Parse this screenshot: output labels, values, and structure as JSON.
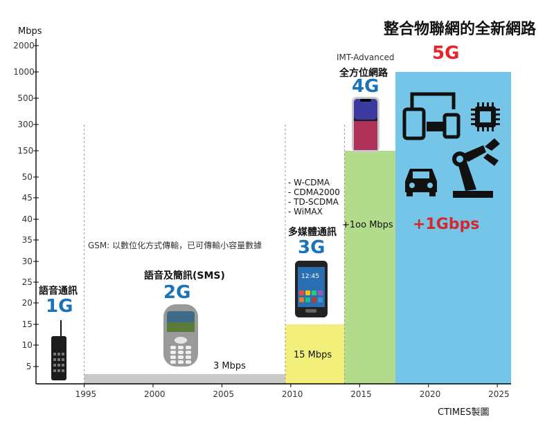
{
  "title": "整合物聯網的全新網路",
  "credit": "CTIMES製圖",
  "chart_data": {
    "type": "bar",
    "title": "整合物聯網的全新網路",
    "ylabel": "Mbps",
    "xlabel": "",
    "x_ticks": [
      1995,
      2000,
      2005,
      2010,
      2015,
      2020,
      2025
    ],
    "y_ticks": [
      "5",
      "10",
      "15",
      "20",
      "25",
      "30",
      "35",
      "40",
      "45",
      "50",
      "150",
      "300",
      "500",
      "1000",
      "2000"
    ],
    "xlim": [
      1991.5,
      2026
    ],
    "bars": [
      {
        "name": "2G",
        "x_start": 1995,
        "x_end": 2009.6,
        "tick_value": "3 Mbps",
        "label": "3 Mbps",
        "color": "#c9c9c9"
      },
      {
        "name": "3G",
        "x_start": 2009.6,
        "x_end": 2013.9,
        "tick_value": "15",
        "label": "15 Mbps",
        "color": "#f2ef7a"
      },
      {
        "name": "4G",
        "x_start": 2013.9,
        "x_end": 2017.6,
        "tick_value": "150",
        "label": "+1oo Mbps",
        "color": "#b2db8b"
      },
      {
        "name": "5G",
        "x_start": 2017.6,
        "x_end": 2026,
        "tick_value": "1000",
        "label": "+1Gbps",
        "color": "#74c5e8"
      }
    ],
    "generations": [
      {
        "gen": "1G",
        "title": "語音通訊",
        "year": 1993
      },
      {
        "gen": "2G",
        "title": "語音及簡訊(SMS)",
        "year": 2002.5
      },
      {
        "gen": "3G",
        "title": "多媒體通訊",
        "year": 2011.8
      },
      {
        "gen": "4G",
        "title": "全方位網路",
        "subtitle": "IMT-Advanced",
        "year": 2015.7
      },
      {
        "gen": "5G",
        "title": "",
        "year": 2021.3
      }
    ],
    "notes": {
      "gsm": "GSM: 以數位化方式傳輸，已可傳輸小容量數據",
      "standards_3g": [
        "- W-CDMA",
        "- CDMA2000",
        "- TD-SCDMA",
        "- WiMAX"
      ]
    },
    "dashed_years": [
      1995,
      2009.6,
      2013.9
    ],
    "colors": {
      "gen_blue": "#1a73b8",
      "gen_red": "#e5252a",
      "axis": "#000000"
    }
  }
}
